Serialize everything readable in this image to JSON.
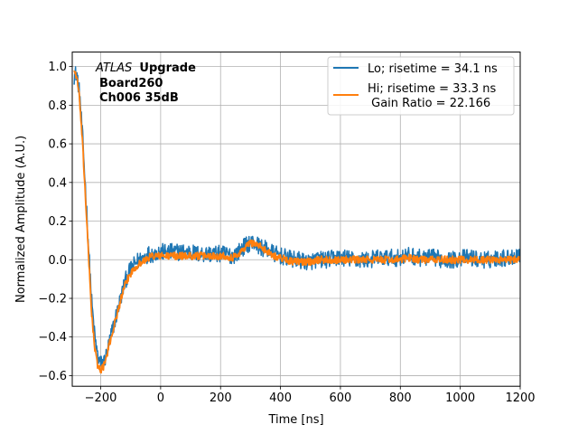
{
  "chart_data": {
    "type": "line",
    "xlabel": "Time [ns]",
    "ylabel": "Normalized Amplitude (A.U.)",
    "xlim": [
      -295,
      1200
    ],
    "ylim": [
      -0.655,
      1.075
    ],
    "xticks": [
      -200,
      0,
      200,
      400,
      600,
      800,
      1000,
      1200
    ],
    "xtick_labels": [
      "−200",
      "0",
      "200",
      "400",
      "600",
      "800",
      "1000",
      "1200"
    ],
    "yticks": [
      -0.6,
      -0.4,
      -0.2,
      0.0,
      0.2,
      0.4,
      0.6,
      0.8,
      1.0
    ],
    "ytick_labels": [
      "−0.6",
      "−0.4",
      "−0.2",
      "0.0",
      "0.2",
      "0.4",
      "0.6",
      "0.8",
      "1.0"
    ],
    "grid": true,
    "legend_position": "top-right",
    "annotation": {
      "italic": "ATLAS",
      "bold": "Upgrade",
      "line2": "Board260",
      "line3": "Ch006 35dB"
    },
    "series": [
      {
        "name": "Lo; risetime = 34.1 ns",
        "color": "#1f77b4",
        "noise": 0.028,
        "x": [
          -290,
          -280,
          -270,
          -260,
          -250,
          -240,
          -230,
          -220,
          -210,
          -200,
          -190,
          -180,
          -170,
          -160,
          -150,
          -140,
          -130,
          -120,
          -110,
          -100,
          -90,
          -80,
          -70,
          -60,
          -50,
          -40,
          -30,
          -20,
          -10,
          0,
          20,
          40,
          60,
          80,
          100,
          120,
          140,
          160,
          180,
          200,
          220,
          240,
          260,
          280,
          300,
          320,
          340,
          360,
          380,
          400,
          420,
          440,
          460,
          480,
          500,
          520,
          540,
          560,
          580,
          600,
          620,
          640,
          660,
          680,
          700,
          720,
          740,
          760,
          780,
          800,
          820,
          840,
          860,
          880,
          900,
          920,
          940,
          960,
          980,
          1000,
          1020,
          1040,
          1060,
          1080,
          1100,
          1120,
          1140,
          1160,
          1180,
          1200
        ],
        "y": [
          0.95,
          0.97,
          0.85,
          0.62,
          0.35,
          0.05,
          -0.22,
          -0.4,
          -0.5,
          -0.54,
          -0.53,
          -0.49,
          -0.42,
          -0.36,
          -0.3,
          -0.24,
          -0.18,
          -0.12,
          -0.08,
          -0.05,
          -0.03,
          -0.01,
          0.0,
          0.01,
          0.02,
          0.03,
          0.03,
          0.03,
          0.04,
          0.04,
          0.04,
          0.04,
          0.04,
          0.04,
          0.04,
          0.03,
          0.03,
          0.03,
          0.03,
          0.03,
          0.03,
          0.02,
          0.04,
          0.07,
          0.09,
          0.08,
          0.06,
          0.05,
          0.03,
          0.02,
          0.01,
          0.0,
          0.0,
          -0.01,
          -0.01,
          0.0,
          0.0,
          0.0,
          0.01,
          0.01,
          0.01,
          0.0,
          0.0,
          0.0,
          0.0,
          0.01,
          0.01,
          0.01,
          0.01,
          0.01,
          0.02,
          0.02,
          0.01,
          0.01,
          0.01,
          0.01,
          0.0,
          0.0,
          0.0,
          0.01,
          0.01,
          0.01,
          0.0,
          0.0,
          0.0,
          0.01,
          0.01,
          0.01,
          0.02,
          0.03
        ]
      },
      {
        "name": "Hi; risetime = 33.3 ns\n Gain Ratio = 22.166",
        "color": "#ff7f0e",
        "noise": 0.012,
        "x": [
          -290,
          -280,
          -270,
          -260,
          -250,
          -240,
          -230,
          -220,
          -210,
          -200,
          -190,
          -180,
          -170,
          -160,
          -150,
          -140,
          -130,
          -120,
          -110,
          -100,
          -90,
          -80,
          -70,
          -60,
          -50,
          -40,
          -30,
          -20,
          -10,
          0,
          20,
          40,
          60,
          80,
          100,
          120,
          140,
          160,
          180,
          200,
          220,
          240,
          260,
          280,
          300,
          320,
          340,
          360,
          380,
          400,
          420,
          440,
          460,
          480,
          500,
          520,
          540,
          560,
          580,
          600,
          620,
          640,
          660,
          680,
          700,
          720,
          740,
          760,
          780,
          800,
          820,
          840,
          860,
          880,
          900,
          920,
          940,
          960,
          980,
          1000,
          1020,
          1040,
          1060,
          1080,
          1100,
          1120,
          1140,
          1160,
          1180,
          1200
        ],
        "y": [
          0.98,
          0.95,
          0.82,
          0.58,
          0.3,
          0.0,
          -0.28,
          -0.46,
          -0.55,
          -0.57,
          -0.55,
          -0.5,
          -0.43,
          -0.37,
          -0.31,
          -0.25,
          -0.19,
          -0.14,
          -0.1,
          -0.07,
          -0.05,
          -0.03,
          -0.02,
          -0.01,
          0.0,
          0.01,
          0.02,
          0.02,
          0.02,
          0.02,
          0.02,
          0.02,
          0.02,
          0.02,
          0.02,
          0.02,
          0.02,
          0.02,
          0.02,
          0.02,
          0.02,
          0.01,
          0.03,
          0.06,
          0.09,
          0.08,
          0.06,
          0.04,
          0.02,
          0.01,
          0.0,
          -0.01,
          -0.01,
          -0.01,
          -0.01,
          0.0,
          0.0,
          0.0,
          0.0,
          0.0,
          0.0,
          0.0,
          0.0,
          0.0,
          0.0,
          0.0,
          0.0,
          0.0,
          0.0,
          0.0,
          0.01,
          0.01,
          0.0,
          0.0,
          0.0,
          0.0,
          0.0,
          0.0,
          0.0,
          0.0,
          0.0,
          0.0,
          0.0,
          0.0,
          0.0,
          0.0,
          0.0,
          0.0,
          0.0,
          0.0
        ]
      }
    ]
  }
}
